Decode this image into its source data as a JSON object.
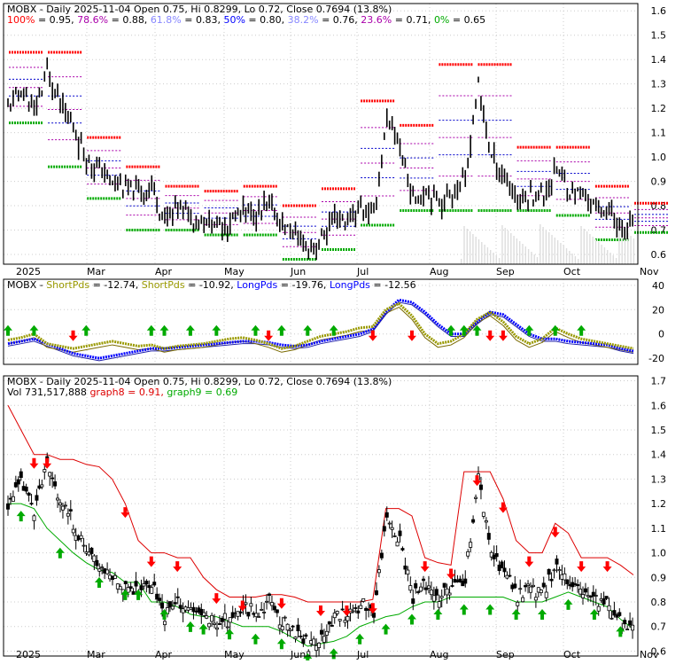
{
  "colors": {
    "grid": "#cccccc",
    "frame": "#000000",
    "price": "#000000",
    "fib_res": "#ff0000",
    "fib_sup": "#00aa00",
    "fib_mid": "#aa00aa",
    "fib_blue": "#0000cc",
    "short_pds": "#999900",
    "short_pds2": "#7a6a00",
    "long_pds": "#0000ff",
    "long_pds2": "#2222aa",
    "arrow_up": "#00aa00",
    "arrow_down": "#ff0000",
    "upper_band": "#dd0000",
    "lower_band": "#00aa00",
    "volume": "#dddddd"
  },
  "chart_data": [
    {
      "type": "bar",
      "id": "price-fib",
      "title": "MOBX - Daily 2025-11-04 Open 0.75, Hi 0.8299, Lo 0.72, Close 0.7694 (13.8%)",
      "fib_levels": [
        {
          "label": "100%",
          "value": 0.95,
          "color": "#ff0000",
          "text": "= 0.95,"
        },
        {
          "label": "78.6%",
          "value": 0.88,
          "color": "#aa00aa",
          "text": "= 0.88,"
        },
        {
          "label": "61.8%",
          "value": 0.83,
          "color": "#8888ff",
          "text": "= 0.83,"
        },
        {
          "label": "50%",
          "value": 0.8,
          "color": "#0000ff",
          "text": "= 0.80,"
        },
        {
          "label": "38.2%",
          "value": 0.76,
          "color": "#8888ff",
          "text": "= 0.76,"
        },
        {
          "label": "23.6%",
          "value": 0.71,
          "color": "#aa00aa",
          "text": "= 0.71,"
        },
        {
          "label": "0%",
          "value": 0.65,
          "color": "#00aa00",
          "text": "= 0.65"
        }
      ],
      "y_ticks": [
        "1.6",
        "1.5",
        "1.4",
        "1.3",
        "1.2",
        "1.1",
        "1.0",
        "0.9",
        "0.8",
        "0.7",
        "0.6"
      ],
      "ylim": [
        0.56,
        1.63
      ],
      "x_labels": [
        "2025",
        "Mar",
        "Apr",
        "May",
        "Jun",
        "Jul",
        "Aug",
        "Sep",
        "Oct",
        "Nov"
      ],
      "x_label_pos": [
        0,
        1.9,
        3.0,
        4.05,
        5.2,
        6.25,
        7.3,
        8.35,
        9.4,
        10.45
      ],
      "closes_weekly": [
        1.2,
        1.28,
        1.18,
        1.35,
        1.22,
        1.12,
        1.0,
        0.95,
        0.9,
        0.87,
        0.85,
        0.88,
        0.74,
        0.8,
        0.76,
        0.74,
        0.72,
        0.73,
        0.78,
        0.76,
        0.8,
        0.72,
        0.68,
        0.62,
        0.66,
        0.75,
        0.74,
        0.79,
        0.76,
        1.15,
        1.05,
        0.82,
        0.87,
        0.82,
        0.85,
        0.9,
        1.3,
        1.0,
        0.92,
        0.82,
        0.85,
        0.84,
        0.96,
        0.86,
        0.84,
        0.8,
        0.78,
        0.7,
        0.73
      ]
    },
    {
      "type": "line",
      "id": "indicator",
      "title": "MOBX - ShortPds = -12.74, ShortPds = -10.92, LongPds = -19.76, LongPds = -12.56",
      "legend": [
        {
          "text": "MOBX - ",
          "color": "#000000"
        },
        {
          "text": "ShortPds",
          "color": "#999900"
        },
        {
          "text": " = -12.74, ",
          "color": "#000000"
        },
        {
          "text": "ShortPds",
          "color": "#999900"
        },
        {
          "text": " = -10.92, ",
          "color": "#000000"
        },
        {
          "text": "LongPds",
          "color": "#0000ff"
        },
        {
          "text": " = -19.76, ",
          "color": "#000000"
        },
        {
          "text": "LongPds",
          "color": "#0000ff"
        },
        {
          "text": " = -12.56",
          "color": "#000000"
        }
      ],
      "y_ticks": [
        "40",
        "20",
        "0",
        "-20"
      ],
      "ylim": [
        -25,
        45
      ],
      "short_pds": [
        -5,
        -3,
        0,
        -8,
        -10,
        -12,
        -10,
        -8,
        -6,
        -8,
        -10,
        -9,
        -12,
        -10,
        -9,
        -8,
        -6,
        -4,
        -3,
        -5,
        -8,
        -12,
        -10,
        -6,
        -2,
        0,
        2,
        5,
        6,
        20,
        25,
        15,
        0,
        -8,
        -6,
        0,
        12,
        18,
        10,
        -2,
        -8,
        -4,
        5,
        0,
        -4,
        -6,
        -8,
        -10,
        -12
      ],
      "long_pds": [
        -8,
        -6,
        -4,
        -8,
        -12,
        -16,
        -18,
        -20,
        -18,
        -16,
        -14,
        -12,
        -12,
        -11,
        -10,
        -9,
        -8,
        -7,
        -6,
        -6,
        -7,
        -9,
        -10,
        -9,
        -6,
        -4,
        -2,
        0,
        4,
        18,
        28,
        26,
        18,
        8,
        0,
        0,
        10,
        18,
        16,
        8,
        0,
        -4,
        -4,
        -6,
        -7,
        -8,
        -9,
        -12,
        -14
      ],
      "up_arrows_idx": [
        0,
        2,
        6,
        11,
        12,
        14,
        16,
        19,
        21,
        23,
        25,
        34,
        35,
        36,
        40,
        42,
        44
      ],
      "down_arrows_idx": [
        5,
        20,
        28,
        31,
        37,
        38
      ]
    },
    {
      "type": "bar",
      "id": "price-bands",
      "title": "MOBX - Daily 2025-11-04 Open 0.75, Hi 0.8299, Lo 0.72, Close 0.7694 (13.8%)",
      "subtitle_parts": [
        {
          "text": "Vol 731,517,888 ",
          "color": "#000000"
        },
        {
          "text": "graph8 = 0.91, ",
          "color": "#dd0000"
        },
        {
          "text": "graph9 = 0.69",
          "color": "#00aa00"
        }
      ],
      "y_ticks": [
        "1.7",
        "1.6",
        "1.5",
        "1.4",
        "1.3",
        "1.2",
        "1.1",
        "1.0",
        "0.9",
        "0.8",
        "0.7",
        "0.6"
      ],
      "ylim": [
        0.58,
        1.72
      ],
      "upper_band": [
        1.6,
        1.5,
        1.4,
        1.4,
        1.38,
        1.38,
        1.36,
        1.35,
        1.3,
        1.2,
        1.05,
        1.0,
        1.0,
        0.98,
        0.98,
        0.9,
        0.85,
        0.82,
        0.82,
        0.82,
        0.83,
        0.83,
        0.82,
        0.8,
        0.8,
        0.8,
        0.8,
        0.8,
        0.81,
        1.18,
        1.18,
        1.15,
        0.98,
        0.96,
        0.95,
        1.33,
        1.33,
        1.33,
        1.22,
        1.05,
        1.0,
        1.0,
        1.12,
        1.08,
        0.98,
        0.98,
        0.98,
        0.95,
        0.91
      ],
      "lower_band": [
        1.2,
        1.2,
        1.18,
        1.1,
        1.05,
        1.0,
        0.96,
        0.93,
        0.92,
        0.88,
        0.88,
        0.8,
        0.8,
        0.78,
        0.75,
        0.74,
        0.74,
        0.72,
        0.7,
        0.7,
        0.7,
        0.68,
        0.65,
        0.62,
        0.63,
        0.64,
        0.66,
        0.7,
        0.72,
        0.74,
        0.75,
        0.78,
        0.8,
        0.8,
        0.82,
        0.82,
        0.82,
        0.82,
        0.82,
        0.8,
        0.8,
        0.8,
        0.82,
        0.84,
        0.82,
        0.8,
        0.78,
        0.73,
        0.69
      ]
    }
  ]
}
